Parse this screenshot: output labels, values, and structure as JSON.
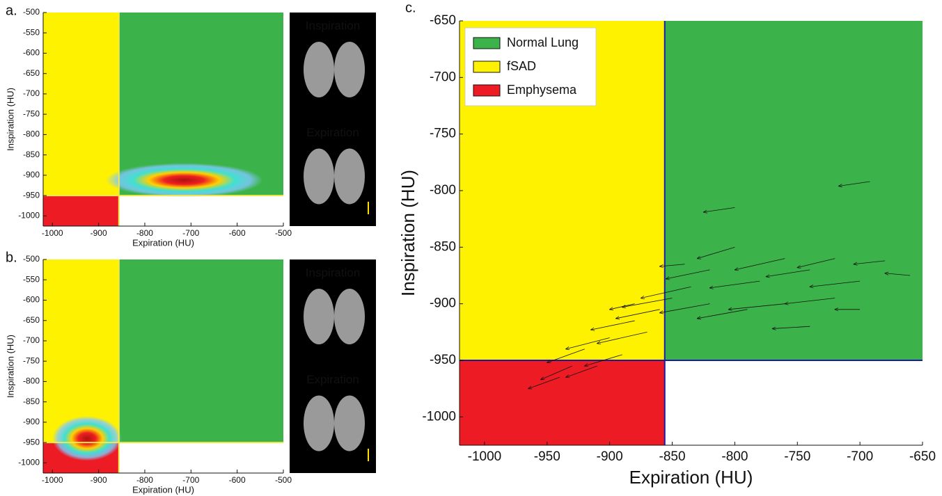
{
  "chart_data": [
    {
      "type": "density",
      "label": "a.",
      "xlabel": "Expiration (HU)",
      "ylabel": "Inspiration (HU)",
      "xlim": [
        -1020,
        -500
      ],
      "ylim": [
        -1025,
        -500
      ],
      "xticks": [
        -1000,
        -900,
        -800,
        -700,
        -600,
        -500
      ],
      "yticks": [
        -1000,
        -950,
        -900,
        -850,
        -800,
        -750,
        -700,
        -650,
        -600,
        -550,
        -500
      ],
      "thresholds": {
        "x": -856,
        "y": -950
      },
      "threshold_color": "#f5e84a",
      "region_colors": {
        "normal": "#3cb34a",
        "fsad": "#fff200",
        "emphysema": "#ed1c24"
      },
      "peak": {
        "x": -715,
        "y": -912
      },
      "spread": {
        "x": 170,
        "y": 42
      },
      "images": [
        "Inspiration",
        "Expiration"
      ]
    },
    {
      "type": "density",
      "label": "b.",
      "xlabel": "Expiration (HU)",
      "ylabel": "Inspiration (HU)",
      "xlim": [
        -1020,
        -500
      ],
      "ylim": [
        -1025,
        -500
      ],
      "xticks": [
        -1000,
        -900,
        -800,
        -700,
        -600,
        -500
      ],
      "yticks": [
        -1000,
        -950,
        -900,
        -850,
        -800,
        -750,
        -700,
        -650,
        -600,
        -550,
        -500
      ],
      "thresholds": {
        "x": -856,
        "y": -950
      },
      "threshold_color": "#f5e84a",
      "region_colors": {
        "normal": "#3cb34a",
        "fsad": "#fff200",
        "emphysema": "#ed1c24"
      },
      "peak": {
        "x": -925,
        "y": -940
      },
      "spread": {
        "x": 75,
        "y": 55
      },
      "images": [
        "Inspiration",
        "Expiration"
      ]
    },
    {
      "type": "quiver",
      "label": "c.",
      "xlabel": "Expiration (HU)",
      "ylabel": "Inspiration (HU)",
      "xlim": [
        -1020,
        -650
      ],
      "ylim": [
        -1025,
        -650
      ],
      "xticks": [
        -1000,
        -950,
        -900,
        -850,
        -800,
        -750,
        -700,
        -650
      ],
      "yticks": [
        -1000,
        -950,
        -900,
        -850,
        -800,
        -750,
        -700,
        -650
      ],
      "thresholds": {
        "x": -856,
        "y": -950
      },
      "threshold_color": "#1a1aa6",
      "series": [
        {
          "name": "Normal Lung",
          "color": "#3cb34a"
        },
        {
          "name": "fSAD",
          "color": "#fff200"
        },
        {
          "name": "Emphysema",
          "color": "#ed1c24"
        }
      ],
      "x": [
        -692,
        -800,
        -680,
        -700,
        -720,
        -740,
        -760,
        -780,
        -800,
        -820,
        -835,
        -850,
        -760,
        -720,
        -790,
        -820,
        -860,
        -840,
        -880,
        -870,
        -900,
        -890,
        -920,
        -910,
        -930,
        -940,
        -880,
        -740,
        -700,
        -660
      ],
      "y": [
        -792,
        -815,
        -862,
        -880,
        -860,
        -870,
        -860,
        -880,
        -850,
        -870,
        -885,
        -895,
        -900,
        -895,
        -905,
        -900,
        -905,
        -865,
        -915,
        -925,
        -930,
        -945,
        -940,
        -955,
        -955,
        -965,
        -900,
        -920,
        -905,
        -875
      ],
      "u": [
        -25,
        -25,
        -25,
        -40,
        -30,
        -35,
        -40,
        -40,
        -30,
        -35,
        -40,
        -40,
        -45,
        -40,
        -40,
        -40,
        -35,
        -20,
        -35,
        -40,
        -35,
        -30,
        -30,
        -25,
        -25,
        -25,
        -20,
        -30,
        -20,
        -20
      ],
      "v": [
        -4,
        -4,
        -3,
        -5,
        -8,
        -6,
        -10,
        -6,
        -10,
        -8,
        -10,
        -8,
        -5,
        -5,
        -8,
        -8,
        -8,
        -2,
        -8,
        -10,
        -10,
        -10,
        -12,
        -10,
        -12,
        -10,
        -5,
        -2,
        0,
        2
      ]
    }
  ]
}
